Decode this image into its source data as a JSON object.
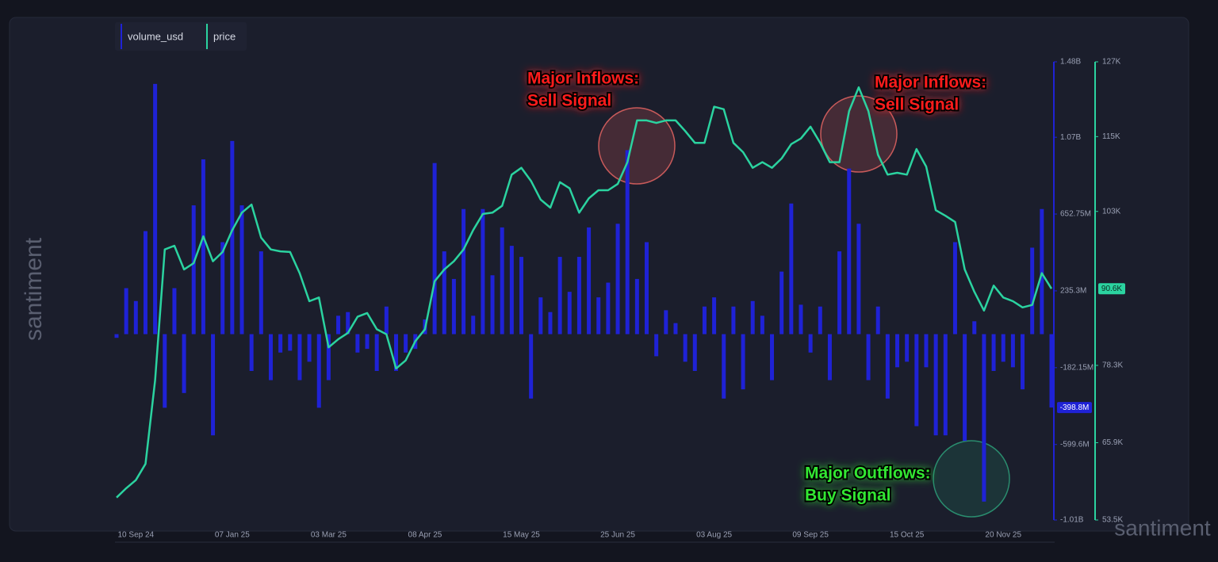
{
  "chart_data": {
    "type": "combo",
    "categories": [
      null,
      null,
      "10 Sep 24",
      null,
      null,
      null,
      null,
      null,
      null,
      null,
      null,
      null,
      "07 Jan 25",
      null,
      null,
      null,
      null,
      null,
      null,
      null,
      null,
      null,
      "03 Mar 25",
      null,
      null,
      null,
      null,
      null,
      null,
      null,
      null,
      null,
      "08 Apr 25",
      null,
      null,
      null,
      null,
      null,
      null,
      null,
      null,
      null,
      "15 May 25",
      null,
      null,
      null,
      null,
      null,
      null,
      null,
      null,
      null,
      "25 Jun 25",
      null,
      null,
      null,
      null,
      null,
      null,
      null,
      null,
      null,
      "03 Aug 25",
      null,
      null,
      null,
      null,
      null,
      null,
      null,
      null,
      null,
      "09 Sep 25",
      null,
      null,
      null,
      null,
      null,
      null,
      null,
      null,
      null,
      "15 Oct 25",
      null,
      null,
      null,
      null,
      null,
      null,
      null,
      null,
      null,
      "20 Nov 25",
      null,
      null,
      null,
      null,
      null
    ],
    "series": [
      {
        "name": "volume_usd",
        "type": "bar",
        "color": "#1f22d6",
        "values": [
          -20000000,
          250000000,
          180000000,
          560000000,
          1360000000,
          -400000000,
          250000000,
          -320000000,
          700000000,
          950000000,
          -550000000,
          500000000,
          1050000000,
          700000000,
          -200000000,
          450000000,
          -250000000,
          -100000000,
          -90000000,
          -250000000,
          -150000000,
          -400000000,
          -250000000,
          100000000,
          120000000,
          -100000000,
          -80000000,
          -200000000,
          150000000,
          -200000000,
          -100000000,
          -80000000,
          80000000,
          930000000,
          450000000,
          300000000,
          680000000,
          100000000,
          680000000,
          320000000,
          580000000,
          480000000,
          420000000,
          -350000000,
          200000000,
          120000000,
          420000000,
          230000000,
          420000000,
          580000000,
          200000000,
          280000000,
          600000000,
          1000000000,
          300000000,
          500000000,
          -120000000,
          130000000,
          60000000,
          -150000000,
          -200000000,
          150000000,
          200000000,
          -350000000,
          150000000,
          -300000000,
          180000000,
          100000000,
          -250000000,
          340000000,
          710000000,
          160000000,
          -100000000,
          150000000,
          -250000000,
          450000000,
          900000000,
          600000000,
          -250000000,
          150000000,
          -350000000,
          -180000000,
          -150000000,
          -500000000,
          -180000000,
          -550000000,
          -550000000,
          500000000,
          -580000000,
          70000000,
          -910000000,
          -200000000,
          -150000000,
          -180000000,
          -300000000,
          470000000,
          680000000,
          -398800000
        ],
        "last_label": {
          "value": -398800000,
          "label": "-398.8M"
        }
      },
      {
        "name": "price",
        "type": "line",
        "axis": "y2",
        "color": "#2bd3a0",
        "values": [
          57100,
          58600,
          59900,
          62500,
          75900,
          96900,
          97500,
          93700,
          94700,
          99000,
          95000,
          96500,
          100000,
          102800,
          104100,
          98800,
          96900,
          96600,
          96500,
          93100,
          88600,
          89200,
          81200,
          82500,
          83500,
          86100,
          86700,
          84100,
          83300,
          77800,
          79100,
          82200,
          84100,
          91800,
          93700,
          95000,
          96900,
          100000,
          102600,
          102800,
          103900,
          108900,
          110000,
          107900,
          104900,
          103600,
          107700,
          106700,
          102800,
          105100,
          106400,
          106400,
          107400,
          110900,
          117600,
          117600,
          117200,
          117600,
          117600,
          115900,
          114000,
          114000,
          119800,
          119400,
          114000,
          112500,
          110000,
          110900,
          110000,
          111500,
          113800,
          114700,
          116600,
          114000,
          110900,
          110900,
          119100,
          122900,
          119100,
          112100,
          108900,
          109200,
          108900,
          113000,
          110200,
          103200,
          102300,
          101300,
          93700,
          90100,
          87100,
          91100,
          89200,
          88600,
          87600,
          88000,
          93100,
          90600
        ],
        "last_label": {
          "value": 90600,
          "label": "90.6K"
        }
      }
    ],
    "ylim": [
      -1010000000,
      1480000000
    ],
    "yticks": [
      {
        "value": 1480000000,
        "label": "1.48B"
      },
      {
        "value": 1070000000,
        "label": "1.07B"
      },
      {
        "value": 652750000,
        "label": "652.75M"
      },
      {
        "value": 235300000,
        "label": "235.3M"
      },
      {
        "value": -182150000,
        "label": "-182.15M"
      },
      {
        "value": -599600000,
        "label": "-599.6M"
      },
      {
        "value": -1010000000,
        "label": "-1.01B"
      }
    ],
    "y2lim": [
      53500,
      127000
    ],
    "y2ticks": [
      {
        "value": 127000,
        "label": "127K"
      },
      {
        "value": 115000,
        "label": "115K"
      },
      {
        "value": 103000,
        "label": "103K"
      },
      {
        "value": 78300,
        "label": "78.3K"
      },
      {
        "value": 65900,
        "label": "65.9K"
      },
      {
        "value": 53500,
        "label": "53.5K"
      }
    ],
    "grid": false,
    "legend": "top-left",
    "annotations": [
      {
        "lines": [
          "Major Inflows:",
          "Sell Signal"
        ],
        "color": "#ff1e1e"
      },
      {
        "lines": [
          "Major Inflows:",
          "Sell Signal"
        ],
        "color": "#ff1e1e"
      },
      {
        "lines": [
          "Major Outflows:",
          "Buy Signal"
        ],
        "color": "#33e633"
      }
    ],
    "watermark": "santiment"
  }
}
